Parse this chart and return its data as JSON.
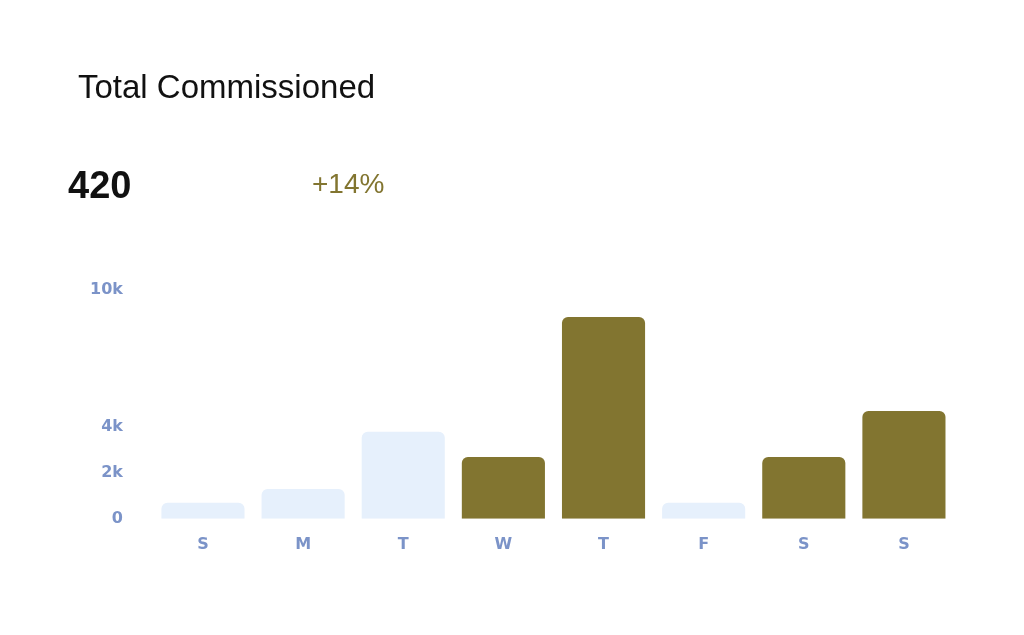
{
  "chart_data": {
    "type": "bar",
    "title": "Total Commissioned",
    "subtitle": "420",
    "annotations": [
      "+14%"
    ],
    "categories": [
      "S",
      "M",
      "T",
      "W",
      "T",
      "F",
      "S",
      "S"
    ],
    "values": [
      700,
      1300,
      3800,
      2700,
      8800,
      700,
      2700,
      4700
    ],
    "colors": [
      "#e6f0fc",
      "#e6f0fc",
      "#e6f0fc",
      "#827530",
      "#827530",
      "#e6f0fc",
      "#827530",
      "#827530"
    ],
    "ylim": [
      0,
      10000
    ],
    "yticks": [
      0,
      {
        "value": 2000,
        "label": "2k"
      },
      {
        "value": 4000,
        "label": "4k"
      },
      {
        "value": 10000,
        "label": "10k"
      }
    ],
    "grid": false,
    "legend": false
  }
}
